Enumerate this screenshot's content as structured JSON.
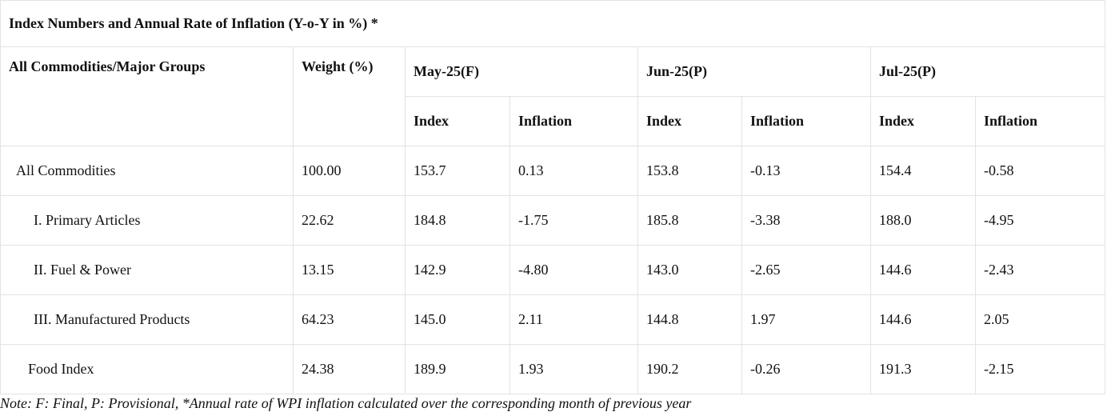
{
  "title": "Index Numbers and Annual Rate of Inflation (Y-o-Y in %) *",
  "headers": {
    "group": "All Commodities/Major Groups",
    "weight": "Weight (%)",
    "months": [
      "May-25(F)",
      "Jun-25(P)",
      "Jul-25(P)"
    ],
    "index": "Index",
    "inflation": "Inflation"
  },
  "rows": [
    {
      "name": "All Commodities",
      "weight": "100.00",
      "may_index": "153.7",
      "may_inflation": "0.13",
      "jun_index": "153.8",
      "jun_inflation": "-0.13",
      "jul_index": "154.4",
      "jul_inflation": "-0.58"
    },
    {
      "name": "I. Primary Articles",
      "weight": "22.62",
      "may_index": "184.8",
      "may_inflation": "-1.75",
      "jun_index": "185.8",
      "jun_inflation": "-3.38",
      "jul_index": "188.0",
      "jul_inflation": "-4.95"
    },
    {
      "name": "II. Fuel & Power",
      "weight": "13.15",
      "may_index": "142.9",
      "may_inflation": "-4.80",
      "jun_index": "143.0",
      "jun_inflation": "-2.65",
      "jul_index": "144.6",
      "jul_inflation": "-2.43"
    },
    {
      "name": "III. Manufactured Products",
      "weight": "64.23",
      "may_index": "145.0",
      "may_inflation": "2.11",
      "jun_index": "144.8",
      "jun_inflation": "1.97",
      "jul_index": "144.6",
      "jul_inflation": "2.05"
    },
    {
      "name": "Food Index",
      "weight": "24.38",
      "may_index": "189.9",
      "may_inflation": "1.93",
      "jun_index": "190.2",
      "jun_inflation": "-0.26",
      "jul_index": "191.3",
      "jul_inflation": "-2.15"
    }
  ],
  "note": "Note: F: Final, P: Provisional, *Annual rate of WPI inflation calculated over the corresponding month of previous year"
}
